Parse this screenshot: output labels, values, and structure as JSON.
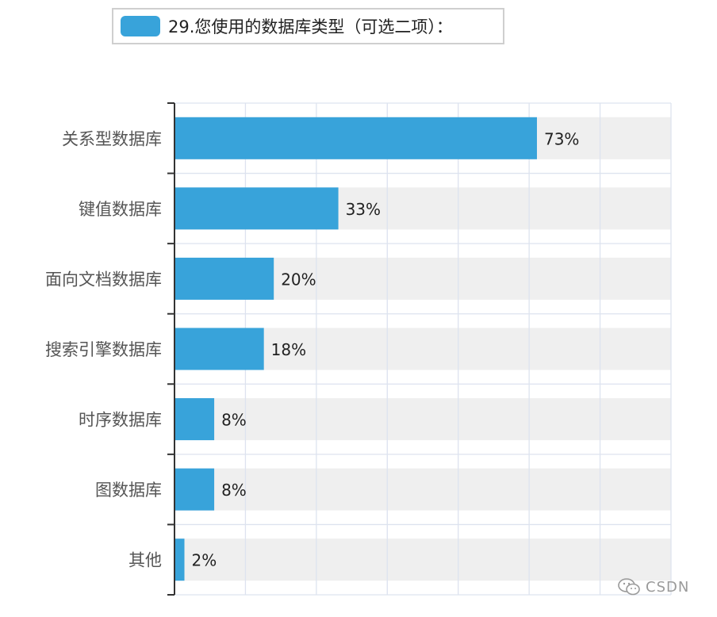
{
  "chart_data": {
    "type": "bar",
    "orientation": "horizontal",
    "legend": {
      "label": "29.您使用的数据库类型（可选二项）：",
      "position": "top"
    },
    "categories": [
      "关系型数据库",
      "键值数据库",
      "面向文档数据库",
      "搜索引擎数据库",
      "时序数据库",
      "图数据库",
      "其他"
    ],
    "values": [
      73,
      33,
      20,
      18,
      8,
      8,
      2
    ],
    "data_labels": [
      "73%",
      "33%",
      "20%",
      "18%",
      "8%",
      "8%",
      "2%"
    ],
    "xlim": [
      0,
      100
    ],
    "grid": true,
    "colors": {
      "bar": "#38a3da",
      "track": "#efefef",
      "grid": "#dde3ef",
      "axis": "#333333",
      "category_label": "#555555",
      "value_label": "#222222"
    }
  },
  "watermark": {
    "text": "CSDN",
    "icon": "wechat-icon"
  }
}
